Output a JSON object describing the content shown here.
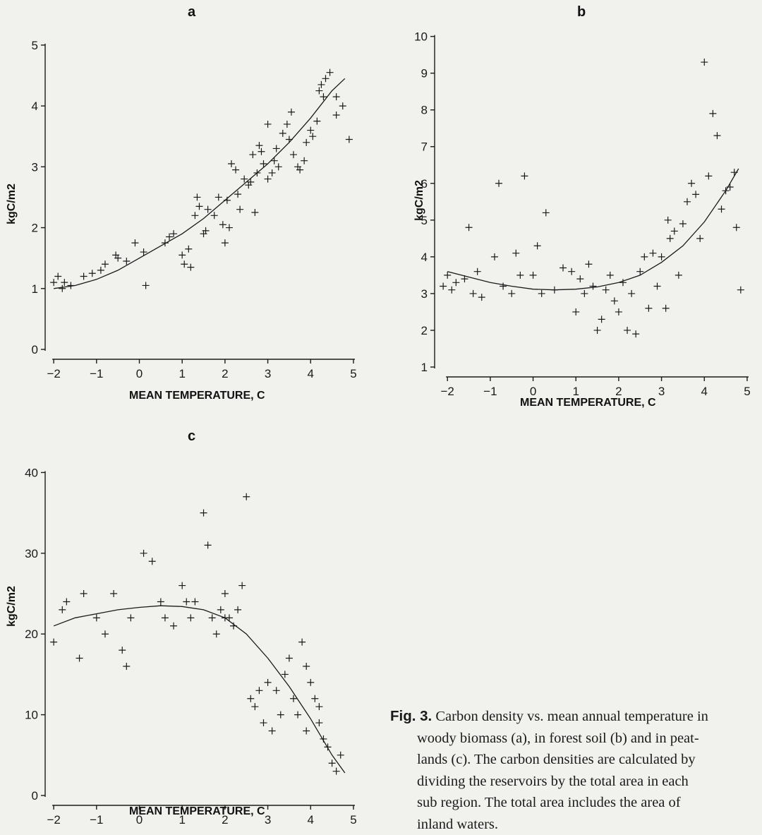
{
  "figure": {
    "panels": [
      {
        "id": "a",
        "letter": "a",
        "xlabel": "MEAN TEMPERATURE, C",
        "ylabel": "kgC/m2"
      },
      {
        "id": "b",
        "letter": "b",
        "xlabel": "MEAN TEMPERATURE, C",
        "ylabel": "kgC/m2"
      },
      {
        "id": "c",
        "letter": "c",
        "xlabel": "MEAN TEMPERATURE, C",
        "ylabel": "kgC/m2"
      }
    ],
    "caption": {
      "label": "Fig. 3.",
      "lines": [
        "Carbon density vs. mean annual temperature in",
        "woody biomass (a), in forest soil (b) and in peat-",
        "lands (c). The carbon densities are calculated by",
        "dividing the reservoirs by the total area in each",
        "sub region. The total area includes the area of",
        "inland waters."
      ]
    }
  },
  "chart_data": [
    {
      "panel": "a",
      "type": "scatter",
      "title": "a",
      "xlabel": "MEAN TEMPERATURE, C",
      "ylabel": "kgC/m2",
      "xlim": [
        -2.2,
        5.1
      ],
      "ylim": [
        0,
        5.3
      ],
      "xticks": [
        -2,
        -1,
        0,
        1,
        2,
        3,
        4,
        5
      ],
      "yticks": [
        0,
        1,
        2,
        3,
        4,
        5
      ],
      "marker": "+",
      "points": [
        [
          -2.0,
          1.1
        ],
        [
          -1.9,
          1.2
        ],
        [
          -1.8,
          1.0
        ],
        [
          -1.75,
          1.1
        ],
        [
          -1.6,
          1.05
        ],
        [
          -1.3,
          1.2
        ],
        [
          -1.1,
          1.25
        ],
        [
          -0.9,
          1.3
        ],
        [
          -0.8,
          1.4
        ],
        [
          -0.55,
          1.55
        ],
        [
          -0.5,
          1.5
        ],
        [
          -0.3,
          1.45
        ],
        [
          -0.1,
          1.75
        ],
        [
          0.1,
          1.6
        ],
        [
          0.15,
          1.05
        ],
        [
          0.6,
          1.75
        ],
        [
          0.7,
          1.85
        ],
        [
          0.8,
          1.9
        ],
        [
          1.0,
          1.55
        ],
        [
          1.05,
          1.4
        ],
        [
          1.15,
          1.65
        ],
        [
          1.3,
          2.2
        ],
        [
          1.35,
          2.5
        ],
        [
          1.4,
          2.35
        ],
        [
          1.5,
          1.9
        ],
        [
          1.6,
          2.3
        ],
        [
          1.75,
          2.2
        ],
        [
          1.85,
          2.5
        ],
        [
          1.95,
          2.05
        ],
        [
          2.0,
          1.75
        ],
        [
          2.1,
          2.0
        ],
        [
          2.05,
          2.45
        ],
        [
          2.15,
          3.05
        ],
        [
          2.25,
          2.95
        ],
        [
          2.3,
          2.55
        ],
        [
          2.35,
          2.3
        ],
        [
          2.45,
          2.8
        ],
        [
          2.55,
          2.7
        ],
        [
          2.6,
          2.75
        ],
        [
          2.65,
          3.2
        ],
        [
          2.75,
          2.9
        ],
        [
          2.8,
          3.35
        ],
        [
          2.85,
          3.25
        ],
        [
          3.0,
          2.8
        ],
        [
          3.1,
          2.9
        ],
        [
          3.15,
          3.1
        ],
        [
          3.2,
          3.3
        ],
        [
          3.25,
          3.0
        ],
        [
          3.35,
          3.55
        ],
        [
          3.45,
          3.7
        ],
        [
          3.5,
          3.45
        ],
        [
          3.6,
          3.2
        ],
        [
          3.7,
          3.0
        ],
        [
          3.75,
          2.95
        ],
        [
          3.85,
          3.1
        ],
        [
          3.9,
          3.4
        ],
        [
          4.0,
          3.6
        ],
        [
          4.05,
          3.5
        ],
        [
          4.15,
          3.75
        ],
        [
          4.2,
          4.25
        ],
        [
          4.25,
          4.35
        ],
        [
          4.3,
          4.15
        ],
        [
          4.35,
          4.45
        ],
        [
          4.45,
          4.55
        ],
        [
          4.6,
          4.15
        ],
        [
          4.75,
          4.0
        ],
        [
          4.9,
          3.45
        ],
        [
          4.6,
          3.85
        ],
        [
          3.0,
          3.7
        ],
        [
          2.9,
          3.05
        ],
        [
          1.55,
          1.95
        ],
        [
          3.55,
          3.9
        ],
        [
          2.7,
          2.25
        ],
        [
          1.2,
          1.35
        ]
      ],
      "fit_curve": {
        "x": [
          -2,
          -1.5,
          -1,
          -0.5,
          0,
          0.5,
          1,
          1.5,
          2,
          2.5,
          3,
          3.5,
          4,
          4.5,
          4.8
        ],
        "y": [
          1.0,
          1.05,
          1.15,
          1.3,
          1.5,
          1.7,
          1.9,
          2.15,
          2.45,
          2.75,
          3.05,
          3.4,
          3.8,
          4.25,
          4.45
        ]
      }
    },
    {
      "panel": "b",
      "type": "scatter",
      "title": "b",
      "xlabel": "MEAN TEMPERATURE, C",
      "ylabel": "kgC/m2",
      "xlim": [
        -2.3,
        5.1
      ],
      "ylim": [
        1,
        10.3
      ],
      "xticks": [
        -2,
        -1,
        0,
        1,
        2,
        3,
        4,
        5
      ],
      "yticks": [
        1,
        2,
        3,
        4,
        5,
        6,
        7,
        8,
        9,
        10
      ],
      "marker": "+",
      "points": [
        [
          -2.1,
          3.2
        ],
        [
          -2.0,
          3.5
        ],
        [
          -1.9,
          3.1
        ],
        [
          -1.8,
          3.3
        ],
        [
          -1.6,
          3.4
        ],
        [
          -1.5,
          4.8
        ],
        [
          -1.4,
          3.0
        ],
        [
          -1.3,
          3.6
        ],
        [
          -1.2,
          2.9
        ],
        [
          -0.9,
          4.0
        ],
        [
          -0.8,
          6.0
        ],
        [
          -0.7,
          3.2
        ],
        [
          -0.5,
          3.0
        ],
        [
          -0.4,
          4.1
        ],
        [
          -0.3,
          3.5
        ],
        [
          -0.2,
          6.2
        ],
        [
          0.0,
          3.5
        ],
        [
          0.1,
          4.3
        ],
        [
          0.2,
          3.0
        ],
        [
          0.3,
          5.2
        ],
        [
          0.5,
          3.1
        ],
        [
          0.7,
          3.7
        ],
        [
          0.9,
          3.6
        ],
        [
          1.0,
          2.5
        ],
        [
          1.1,
          3.4
        ],
        [
          1.2,
          3.0
        ],
        [
          1.3,
          3.8
        ],
        [
          1.4,
          3.2
        ],
        [
          1.5,
          2.0
        ],
        [
          1.6,
          2.3
        ],
        [
          1.7,
          3.1
        ],
        [
          1.8,
          3.5
        ],
        [
          1.9,
          2.8
        ],
        [
          2.0,
          2.5
        ],
        [
          2.1,
          3.3
        ],
        [
          2.2,
          2.0
        ],
        [
          2.3,
          3.0
        ],
        [
          2.4,
          1.9
        ],
        [
          2.5,
          3.6
        ],
        [
          2.6,
          4.0
        ],
        [
          2.7,
          2.6
        ],
        [
          2.8,
          4.1
        ],
        [
          2.9,
          3.2
        ],
        [
          3.0,
          4.0
        ],
        [
          3.1,
          2.6
        ],
        [
          3.15,
          5.0
        ],
        [
          3.2,
          4.5
        ],
        [
          3.3,
          4.7
        ],
        [
          3.4,
          3.5
        ],
        [
          3.5,
          4.9
        ],
        [
          3.6,
          5.5
        ],
        [
          3.7,
          6.0
        ],
        [
          3.8,
          5.7
        ],
        [
          3.9,
          4.5
        ],
        [
          4.0,
          9.3
        ],
        [
          4.1,
          6.2
        ],
        [
          4.2,
          7.9
        ],
        [
          4.3,
          7.3
        ],
        [
          4.4,
          5.3
        ],
        [
          4.5,
          5.8
        ],
        [
          4.6,
          5.9
        ],
        [
          4.75,
          4.8
        ],
        [
          4.85,
          3.1
        ],
        [
          4.7,
          6.3
        ]
      ],
      "fit_curve": {
        "x": [
          -2,
          -1.5,
          -1,
          -0.5,
          0,
          0.5,
          1,
          1.5,
          2,
          2.5,
          3,
          3.5,
          4,
          4.5,
          4.8
        ],
        "y": [
          3.6,
          3.45,
          3.3,
          3.2,
          3.12,
          3.1,
          3.12,
          3.18,
          3.3,
          3.5,
          3.85,
          4.3,
          4.95,
          5.8,
          6.4
        ]
      }
    },
    {
      "panel": "c",
      "type": "scatter",
      "title": "c",
      "xlabel": "MEAN TEMPERATURE, C",
      "ylabel": "kgC/m2",
      "xlim": [
        -2.2,
        5.1
      ],
      "ylim": [
        0,
        41
      ],
      "xticks": [
        -2,
        -1,
        0,
        1,
        2,
        3,
        4,
        5
      ],
      "yticks": [
        0,
        10,
        20,
        30,
        40
      ],
      "marker": "+",
      "points": [
        [
          -2.0,
          19
        ],
        [
          -1.8,
          23
        ],
        [
          -1.7,
          24
        ],
        [
          -1.4,
          17
        ],
        [
          -1.3,
          25
        ],
        [
          -1.0,
          22
        ],
        [
          -0.8,
          20
        ],
        [
          -0.6,
          25
        ],
        [
          -0.4,
          18
        ],
        [
          -0.3,
          16
        ],
        [
          -0.2,
          22
        ],
        [
          0.1,
          30
        ],
        [
          0.3,
          29
        ],
        [
          0.5,
          24
        ],
        [
          0.6,
          22
        ],
        [
          0.8,
          21
        ],
        [
          1.0,
          26
        ],
        [
          1.1,
          24
        ],
        [
          1.2,
          22
        ],
        [
          1.3,
          24
        ],
        [
          1.5,
          35
        ],
        [
          1.6,
          31
        ],
        [
          1.7,
          22
        ],
        [
          1.8,
          20
        ],
        [
          1.9,
          23
        ],
        [
          2.0,
          25
        ],
        [
          2.1,
          22
        ],
        [
          2.2,
          21
        ],
        [
          2.3,
          23
        ],
        [
          2.4,
          26
        ],
        [
          2.5,
          37
        ],
        [
          2.6,
          12
        ],
        [
          2.7,
          11
        ],
        [
          2.8,
          13
        ],
        [
          2.9,
          9
        ],
        [
          3.0,
          14
        ],
        [
          3.1,
          8
        ],
        [
          3.2,
          13
        ],
        [
          3.3,
          10
        ],
        [
          3.4,
          15
        ],
        [
          3.5,
          17
        ],
        [
          3.6,
          12
        ],
        [
          3.7,
          10
        ],
        [
          3.8,
          19
        ],
        [
          3.9,
          16
        ],
        [
          4.0,
          14
        ],
        [
          4.1,
          12
        ],
        [
          4.2,
          9
        ],
        [
          4.3,
          7
        ],
        [
          4.4,
          6
        ],
        [
          4.5,
          4
        ],
        [
          4.6,
          3
        ],
        [
          4.7,
          5
        ],
        [
          2.0,
          22
        ],
        [
          3.9,
          8
        ],
        [
          4.2,
          11
        ]
      ],
      "fit_curve": {
        "x": [
          -2,
          -1.5,
          -1,
          -0.5,
          0,
          0.5,
          1,
          1.5,
          2,
          2.5,
          3,
          3.5,
          4,
          4.5,
          4.8
        ],
        "y": [
          21,
          22,
          22.5,
          23,
          23.3,
          23.5,
          23.4,
          23,
          22,
          20,
          17,
          13.5,
          9.5,
          5,
          2.8
        ]
      }
    }
  ]
}
